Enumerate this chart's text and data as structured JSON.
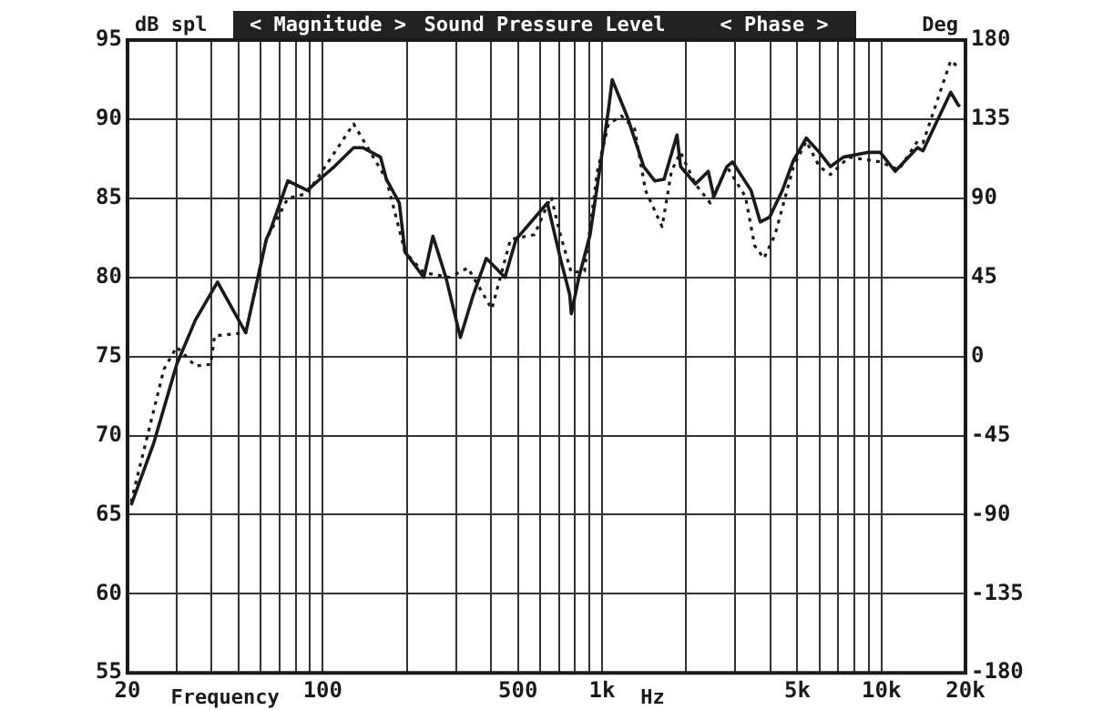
{
  "chart_data": {
    "type": "line",
    "title": "Sound Pressure Level",
    "ylabel": "dB spl",
    "y2label": "Deg",
    "xlabel": "Frequency",
    "annotations": [
      "< Magnitude >",
      "< Phase >",
      "Hz"
    ],
    "log": "x",
    "grid": true,
    "legend": false,
    "marker": "none",
    "xlim": [
      20,
      20000
    ],
    "xticks": [
      20,
      {
        "value": 30,
        "label": null
      },
      {
        "value": 40,
        "label": null
      },
      {
        "value": 50,
        "label": null
      },
      {
        "value": 60,
        "label": null
      },
      {
        "value": 70,
        "label": null
      },
      {
        "value": 80,
        "label": null
      },
      {
        "value": 90,
        "label": null
      },
      100,
      {
        "value": 200,
        "label": null
      },
      {
        "value": 300,
        "label": null
      },
      {
        "value": 400,
        "label": null
      },
      500,
      {
        "value": 600,
        "label": null
      },
      {
        "value": 700,
        "label": null
      },
      {
        "value": 800,
        "label": null
      },
      {
        "value": 900,
        "label": null
      },
      {
        "value": 1000,
        "label": "1k"
      },
      {
        "value": 2000,
        "label": null
      },
      {
        "value": 3000,
        "label": null
      },
      {
        "value": 4000,
        "label": null
      },
      {
        "value": 5000,
        "label": "5k"
      },
      {
        "value": 6000,
        "label": null
      },
      {
        "value": 7000,
        "label": null
      },
      {
        "value": 8000,
        "label": null
      },
      {
        "value": 9000,
        "label": null
      },
      {
        "value": 10000,
        "label": "10k"
      },
      {
        "value": 20000,
        "label": "20k"
      }
    ],
    "ylim": [
      55,
      95
    ],
    "yticks": [
      55,
      60,
      65,
      70,
      75,
      80,
      85,
      90,
      95
    ],
    "y2lim": [
      -180,
      180
    ],
    "y2ticks": [
      -180,
      -135,
      -90,
      -45,
      0,
      45,
      90,
      135,
      180
    ],
    "series": [
      {
        "color": "#1a1a1a",
        "line_style": "solid",
        "x": [
          20.6,
          24.8,
          30,
          35,
          42,
          53,
          62.8,
          65,
          75,
          88,
          102,
          110,
          129,
          139,
          161,
          169,
          188,
          197,
          230,
          248,
          276,
          311,
          346,
          385,
          449,
          492,
          637,
          709,
          766,
          776,
          826,
          906,
          1054,
          1087,
          1228,
          1410,
          1543,
          1667,
          1854,
          1910,
          2158,
          2400,
          2513,
          2798,
          2930,
          3413,
          3683,
          3976,
          4420,
          4844,
          5386,
          5996,
          6572,
          7310,
          8916,
          9910,
          11200,
          13460,
          14090,
          17710,
          18830,
          19100
        ],
        "values": [
          65.6,
          69.5,
          74.5,
          77.3,
          79.7,
          76.5,
          82.4,
          83,
          86.1,
          85.5,
          86.5,
          87,
          88.2,
          88.2,
          87.6,
          86.2,
          84.7,
          81.6,
          80,
          82.6,
          80,
          76.2,
          78.9,
          81.2,
          80,
          82.4,
          84.7,
          81.2,
          78.9,
          77.7,
          80,
          82.7,
          90.6,
          92.5,
          90.2,
          87,
          86.1,
          86.2,
          89,
          87,
          85.9,
          86.7,
          85.1,
          87,
          87.3,
          85.5,
          83.5,
          83.8,
          85.5,
          87.4,
          88.8,
          87.9,
          87,
          87.6,
          87.9,
          87.9,
          86.7,
          88.2,
          88,
          91.7,
          90.9,
          90.8
        ]
      },
      {
        "color": "#1a1a1a",
        "line_style": "dotted",
        "x": [
          20.6,
          27,
          30,
          35,
          39.7,
          41,
          53,
          62.8,
          75,
          88,
          102,
          129,
          169,
          197,
          230,
          284,
          331,
          403,
          470,
          573,
          657,
          709,
          776,
          865,
          962,
          1054,
          1173,
          1307,
          1430,
          1641,
          1771,
          1910,
          2158,
          2440,
          2798,
          3260,
          3517,
          3797,
          4163,
          4844,
          5386,
          5996,
          6572,
          7656,
          9910,
          11550,
          13460,
          14090,
          17710,
          19100
        ],
        "values": [
          65.8,
          74.2,
          75.6,
          74.4,
          74.5,
          76.3,
          76.5,
          82.4,
          85,
          85.3,
          87,
          89.7,
          86.2,
          81.6,
          80.3,
          80,
          80.6,
          78,
          82.4,
          82.7,
          85.1,
          82.7,
          80.3,
          80.4,
          86.7,
          89.7,
          90.2,
          89.4,
          85.5,
          83.2,
          86.7,
          87.9,
          85.9,
          84.7,
          87,
          85.1,
          82,
          81.2,
          82.7,
          87,
          88.6,
          87,
          86.5,
          87.6,
          87.3,
          86.8,
          88.6,
          88.5,
          93.7,
          93.2
        ]
      }
    ]
  }
}
